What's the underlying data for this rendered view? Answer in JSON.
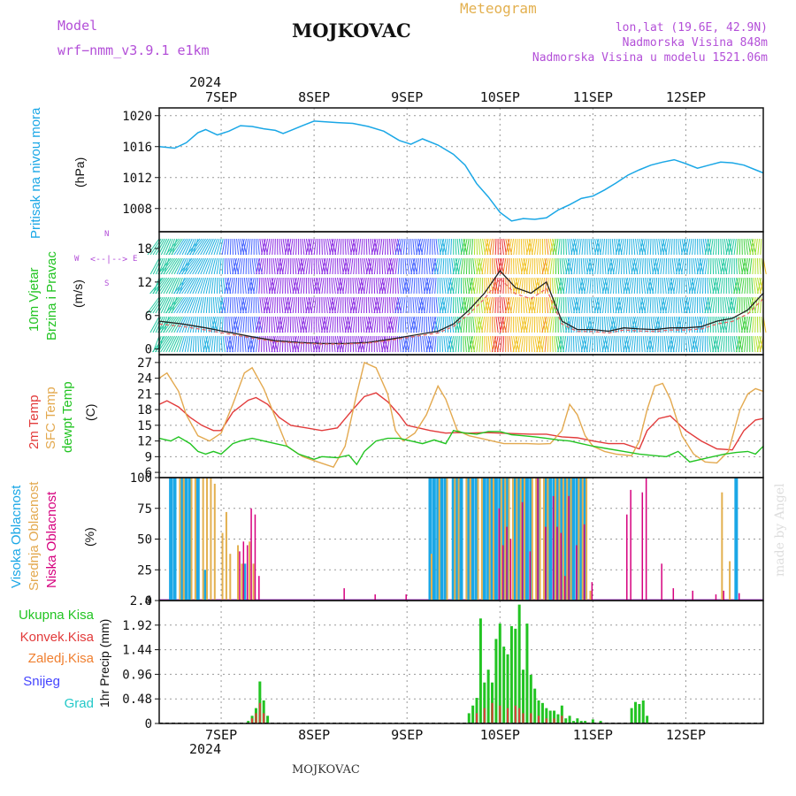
{
  "header": {
    "model_label": "Model",
    "model_name": "wrf−nmm_v3.9.1  e1km",
    "station": "MOJKOVAC",
    "product": "Meteogram",
    "lonlat": "lon,lat (19.6E, 42.9N)",
    "elevation": "Nadmorska Visina 848m",
    "model_elevation": "Nadmorska Visina u modelu 1521.06m",
    "footer_station": "MOJKOVAC",
    "credit": "made by Angel"
  },
  "colors": {
    "purple": "#b34fd8",
    "gold": "#e3b04f",
    "cyan": "#1aa7e6",
    "green": "#22c422",
    "red": "#e23b3b",
    "orange": "#f07f2f",
    "magenta": "#d6007e",
    "blue": "#4444ff",
    "teal": "#22c8c8"
  },
  "time_axis": {
    "year": "2024",
    "days": [
      "7SEP",
      "8SEP",
      "9SEP",
      "10SEP",
      "11SEP",
      "12SEP"
    ],
    "start_hour": -16,
    "end_hour": 140
  },
  "chart_data": [
    {
      "type": "line",
      "name": "pressure",
      "panel_labels": [
        "Pritisak na nivou mora",
        "(hPa)"
      ],
      "yticks": [
        1008,
        1012,
        1016,
        1020
      ],
      "ylim": [
        1005,
        1021
      ],
      "series": [
        {
          "name": "Pritisak",
          "color": "#1aa7e6",
          "x": [
            -16,
            -12,
            -9,
            -6,
            -4,
            -1,
            2,
            5,
            8,
            11,
            14,
            16,
            18,
            21,
            24,
            27,
            30,
            34,
            38,
            42,
            46,
            49,
            52,
            56,
            60,
            63,
            66,
            69,
            72,
            75,
            78,
            81,
            84,
            87,
            90,
            93,
            96,
            99,
            102,
            105,
            108,
            111,
            114,
            117,
            120,
            123,
            126,
            129,
            132,
            135,
            138,
            140
          ],
          "y": [
            1016,
            1015.8,
            1016.5,
            1017.8,
            1018.2,
            1017.5,
            1018,
            1018.7,
            1018.6,
            1018.3,
            1018.1,
            1017.7,
            1018.1,
            1018.7,
            1019.3,
            1019.2,
            1019.1,
            1019,
            1018.6,
            1018,
            1016.8,
            1016.3,
            1017,
            1016.2,
            1015,
            1013.6,
            1011.2,
            1009.5,
            1007.5,
            1006.4,
            1006.7,
            1006.6,
            1006.8,
            1007.8,
            1008.5,
            1009.3,
            1009.6,
            1010.4,
            1011.3,
            1012.3,
            1013,
            1013.6,
            1014,
            1014.3,
            1013.8,
            1013.2,
            1013.6,
            1014,
            1013.9,
            1013.6,
            1013,
            1012.6
          ]
        }
      ]
    },
    {
      "type": "line",
      "name": "wind",
      "panel_labels": [
        "10m Vjetar",
        "Brzina i Pravac",
        "(m/s)"
      ],
      "compass": [
        "W",
        "E",
        "N",
        "S"
      ],
      "yticks": [
        0,
        6,
        12,
        18
      ],
      "ylim": [
        -1,
        21
      ],
      "series": [
        {
          "name": "brzina",
          "color": "#222222",
          "x": [
            -16,
            -10,
            -4,
            2,
            8,
            14,
            20,
            26,
            32,
            38,
            44,
            50,
            56,
            60,
            64,
            68,
            72,
            76,
            80,
            84,
            88,
            92,
            96,
            100,
            104,
            108,
            112,
            116,
            120,
            124,
            128,
            132,
            136,
            140
          ],
          "y": [
            5,
            4.5,
            3.8,
            3,
            2.2,
            1.5,
            1.2,
            1,
            1,
            1.2,
            1.8,
            2.5,
            3.2,
            4.5,
            7,
            10,
            14,
            11,
            10,
            12,
            5,
            3.5,
            3.5,
            3.2,
            3.8,
            3.6,
            3.5,
            3.8,
            3.8,
            4,
            5,
            5.5,
            7,
            10
          ]
        }
      ]
    },
    {
      "type": "line",
      "name": "temperature",
      "panel_labels": [
        "2m Temp",
        "SFC Temp",
        "dewpt Temp",
        "(C)"
      ],
      "yticks": [
        6,
        9,
        12,
        15,
        18,
        21,
        24,
        27
      ],
      "ylim": [
        5,
        28.5
      ],
      "series": [
        {
          "name": "2m Temp",
          "color": "#e23b3b",
          "x": [
            -16,
            -14,
            -11,
            -8,
            -5,
            -2,
            0,
            3,
            7,
            9,
            12,
            15,
            18,
            22,
            26,
            30,
            34,
            37,
            40,
            43,
            46,
            48,
            51,
            54,
            58,
            61,
            64,
            68,
            72,
            76,
            80,
            84,
            88,
            92,
            96,
            100,
            104,
            108,
            110,
            113,
            116,
            120,
            124,
            128,
            132,
            135,
            138,
            140
          ],
          "y": [
            19,
            19.7,
            18.5,
            16.5,
            15,
            14,
            14,
            17.5,
            19.8,
            20.3,
            19,
            16.5,
            15,
            14.5,
            14,
            14.5,
            18,
            20.5,
            21.2,
            19.5,
            17,
            15,
            14.5,
            14,
            13.5,
            13.6,
            13.5,
            13.6,
            13.5,
            13.4,
            13.3,
            13.3,
            12.8,
            12.6,
            12,
            11.5,
            11.5,
            10.5,
            14,
            16.3,
            16.8,
            14,
            12,
            10.5,
            10.3,
            14,
            16,
            16.3
          ]
        },
        {
          "name": "SFC Temp",
          "color": "#e3a94f",
          "x": [
            -16,
            -14,
            -11,
            -9,
            -6,
            -3,
            0,
            3,
            6,
            8,
            11,
            14,
            17,
            21,
            25,
            29,
            32,
            35,
            37,
            40,
            43,
            45,
            47,
            50,
            53,
            56,
            58,
            61,
            64,
            67,
            70,
            73,
            76,
            79,
            82,
            85,
            88,
            90,
            92,
            94,
            96,
            99,
            102,
            106,
            108,
            110,
            112,
            114,
            116,
            119,
            122,
            125,
            128,
            131,
            134,
            136,
            138,
            140
          ],
          "y": [
            24,
            25,
            21.5,
            17,
            13,
            12,
            13.5,
            19,
            25,
            26,
            22,
            16.5,
            11,
            9,
            8,
            7,
            11,
            21,
            27,
            26,
            21,
            14,
            12,
            13.5,
            17,
            22.5,
            20,
            14,
            13,
            12.5,
            12,
            11.5,
            11.5,
            11.5,
            11.4,
            11.5,
            14,
            19,
            17,
            13,
            11,
            10,
            9.5,
            9.2,
            12,
            18,
            22.5,
            23,
            20,
            13,
            9.5,
            8,
            7.8,
            10,
            18,
            21,
            22,
            21.5
          ]
        },
        {
          "name": "dewpt Temp",
          "color": "#22c422",
          "x": [
            -16,
            -13,
            -11,
            -8,
            -6,
            -4,
            -2,
            0,
            3,
            5,
            8,
            11,
            14,
            17,
            20,
            24,
            26,
            30,
            33,
            35,
            37,
            40,
            43,
            46,
            49,
            52,
            55,
            58,
            60,
            63,
            66,
            69,
            72,
            75,
            78,
            81,
            84,
            87,
            90,
            93,
            96,
            100,
            104,
            108,
            112,
            115,
            118,
            121,
            124,
            127,
            130,
            133,
            136,
            138,
            140
          ],
          "y": [
            12.5,
            12,
            12.8,
            11.5,
            10,
            9.5,
            10,
            9.5,
            11.5,
            12,
            12.5,
            12,
            11.5,
            11,
            9.5,
            8.5,
            9,
            8.8,
            9.3,
            7.5,
            10,
            12,
            12.5,
            12.5,
            12,
            11.5,
            12.2,
            11.5,
            14,
            13.5,
            13.3,
            13.8,
            13.8,
            13.2,
            13,
            12.8,
            12.5,
            12.2,
            12,
            11.5,
            11,
            10.5,
            10,
            9.5,
            9.2,
            9,
            10,
            8,
            8.5,
            9,
            9.5,
            9.8,
            10,
            9.5,
            11
          ]
        }
      ]
    },
    {
      "type": "bar",
      "name": "clouds",
      "panel_labels": [
        "Visoka Oblacnost",
        "Srednja Oblacnost",
        "Niska Oblacnost",
        "(%)"
      ],
      "yticks": [
        0,
        25,
        50,
        75,
        100
      ],
      "ylim": [
        0,
        100
      ],
      "series": [
        {
          "name": "Visoka Oblacnost",
          "color": "#1aa7e6",
          "x": [
            -13,
            -12,
            -10,
            -9,
            -8,
            -6,
            -4,
            6,
            54,
            55,
            56,
            57,
            58,
            60,
            61,
            62,
            64,
            65,
            66,
            68,
            69,
            70,
            71,
            72,
            73,
            74,
            76,
            77,
            78,
            79,
            80,
            82,
            84,
            85,
            86,
            87,
            88,
            89,
            90,
            91,
            92,
            93,
            94,
            133
          ],
          "y": [
            100,
            100,
            100,
            100,
            100,
            100,
            25,
            30,
            100,
            100,
            100,
            100,
            100,
            100,
            100,
            100,
            100,
            100,
            100,
            100,
            100,
            100,
            100,
            100,
            100,
            100,
            100,
            100,
            100,
            100,
            100,
            100,
            100,
            100,
            100,
            100,
            100,
            100,
            100,
            100,
            100,
            100,
            100,
            100
          ]
        },
        {
          "name": "Srednja Oblacnost",
          "color": "#e3b04f",
          "x": [
            -11,
            -10,
            -8,
            -7,
            -5,
            -4,
            -3,
            -2,
            0,
            1,
            2,
            4,
            5,
            7,
            8,
            54,
            56,
            58,
            60,
            61,
            63,
            64,
            66,
            67,
            69,
            70,
            72,
            73,
            74,
            75,
            76,
            77,
            78,
            80,
            81,
            82,
            83,
            84,
            86,
            87,
            88,
            89,
            90,
            92,
            93,
            94,
            95,
            129,
            131
          ],
          "y": [
            100,
            100,
            100,
            100,
            100,
            100,
            100,
            95,
            55,
            72,
            38,
            45,
            30,
            48,
            30,
            38,
            100,
            100,
            100,
            100,
            100,
            100,
            100,
            100,
            100,
            100,
            100,
            100,
            100,
            100,
            100,
            100,
            100,
            100,
            100,
            100,
            100,
            100,
            100,
            100,
            100,
            100,
            100,
            100,
            100,
            100,
            8,
            88,
            32
          ]
        },
        {
          "name": "Niska Oblacnost",
          "color": "#d6007e",
          "x": [
            5,
            6,
            7,
            8,
            9,
            10,
            32,
            40,
            48,
            72,
            73,
            74,
            75,
            78,
            80,
            82,
            84,
            86,
            87,
            88,
            89,
            90,
            92,
            94,
            96,
            105,
            106,
            109,
            110,
            114,
            117,
            122,
            128,
            130,
            134
          ],
          "y": [
            40,
            48,
            45,
            75,
            70,
            20,
            10,
            5,
            5,
            75,
            45,
            60,
            50,
            80,
            40,
            100,
            60,
            85,
            60,
            55,
            20,
            85,
            45,
            62,
            15,
            70,
            90,
            88,
            100,
            30,
            10,
            8,
            5,
            8,
            6
          ]
        }
      ]
    },
    {
      "type": "bar",
      "name": "precipitation",
      "panel_labels": [
        "1hr Precip (mm)"
      ],
      "legend": [
        "Ukupna Kisa",
        "Konvek.Kisa",
        "Zaledj.Kisa",
        "Snijeg",
        "Grad"
      ],
      "yticks": [
        0,
        0.48,
        0.96,
        1.44,
        1.92,
        2.4
      ],
      "ylim": [
        0,
        2.4
      ],
      "series": [
        {
          "name": "Ukupna Kisa",
          "color": "#22c422",
          "x": [
            7,
            8,
            9,
            10,
            11,
            12,
            64,
            65,
            66,
            67,
            68,
            69,
            70,
            71,
            72,
            73,
            74,
            75,
            76,
            77,
            78,
            79,
            80,
            81,
            82,
            83,
            84,
            85,
            86,
            87,
            88,
            89,
            90,
            91,
            92,
            93,
            94,
            96,
            98,
            106,
            107,
            108,
            109,
            110
          ],
          "y": [
            0.05,
            0.15,
            0.3,
            0.82,
            0.45,
            0.15,
            0.2,
            0.35,
            0.5,
            2.05,
            0.8,
            1.05,
            0.8,
            1.65,
            1.95,
            1.5,
            1.35,
            1.9,
            1.85,
            2.32,
            1.05,
            1.95,
            0.95,
            0.68,
            0.45,
            0.4,
            0.3,
            0.25,
            0.25,
            0.18,
            0.35,
            0.1,
            0.15,
            0.05,
            0.1,
            0.05,
            0.05,
            0.08,
            0.05,
            0.3,
            0.42,
            0.38,
            0.45,
            0.15
          ]
        },
        {
          "name": "Konvek.Kisa",
          "color": "#e23b3b",
          "x": [
            8,
            9,
            10,
            11,
            66,
            68,
            70,
            72,
            74,
            76,
            77,
            78,
            80,
            82,
            84,
            86,
            88
          ],
          "y": [
            0.1,
            0.2,
            0.4,
            0.2,
            0.2,
            0.3,
            0.4,
            0.35,
            0.3,
            0.35,
            0.3,
            0.2,
            0.2,
            0.15,
            0.1,
            0.1,
            0.15
          ]
        }
      ]
    }
  ]
}
